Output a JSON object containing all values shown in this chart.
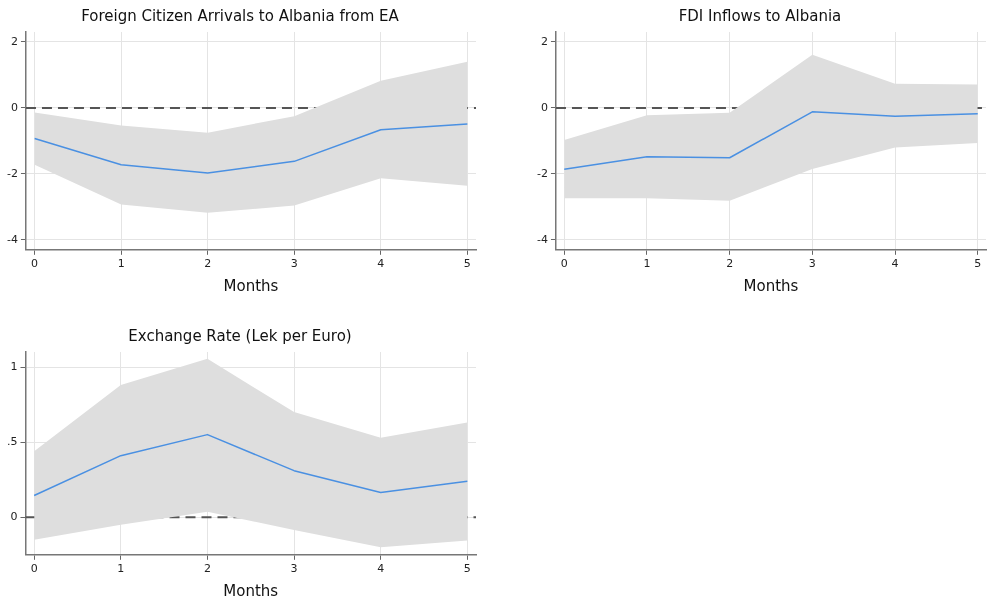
{
  "chart_data": [
    {
      "type": "line",
      "title": "Foreign Citizen Arrivals to Albania from EA",
      "xlabel": "Months",
      "x": [
        0,
        1,
        2,
        3,
        4,
        5
      ],
      "xlim": [
        -0.1,
        5.1
      ],
      "xticks": [
        0,
        1,
        2,
        3,
        4,
        5
      ],
      "ylim": [
        -4.3,
        2.3
      ],
      "yticks": [
        2,
        0,
        -2,
        -4
      ],
      "grid": true,
      "legend": false,
      "marker": "none",
      "line_style": "solid",
      "series": [
        {
          "color": "#4a90e2",
          "values": [
            -0.93,
            -1.72,
            -1.97,
            -1.62,
            -0.66,
            -0.49
          ],
          "lower": [
            -1.72,
            -2.93,
            -3.18,
            -2.96,
            -2.13,
            -2.36
          ],
          "upper": [
            -0.14,
            -0.53,
            -0.75,
            -0.25,
            0.82,
            1.4
          ]
        }
      ],
      "ref_lines": [
        {
          "axis": "y",
          "value": 0,
          "color": "#555555",
          "line_style": "dashed"
        }
      ]
    },
    {
      "type": "line",
      "title": "FDI Inflows to Albania",
      "xlabel": "Months",
      "x": [
        0,
        1,
        2,
        3,
        4,
        5
      ],
      "xlim": [
        -0.1,
        5.1
      ],
      "xticks": [
        0,
        1,
        2,
        3,
        4,
        5
      ],
      "ylim": [
        -4.3,
        2.3
      ],
      "yticks": [
        2,
        0,
        -2,
        -4
      ],
      "grid": true,
      "legend": false,
      "marker": "none",
      "line_style": "solid",
      "series": [
        {
          "color": "#4a90e2",
          "values": [
            -1.86,
            -1.48,
            -1.51,
            -0.12,
            -0.25,
            -0.18
          ],
          "lower": [
            -2.74,
            -2.74,
            -2.81,
            -1.85,
            -1.2,
            -1.06
          ],
          "upper": [
            -0.97,
            -0.22,
            -0.15,
            1.61,
            0.73,
            0.71
          ]
        }
      ],
      "ref_lines": [
        {
          "axis": "y",
          "value": 0,
          "color": "#555555",
          "line_style": "dashed"
        }
      ]
    },
    {
      "type": "line",
      "title": "Exchange Rate (Lek per Euro)",
      "xlabel": "Months",
      "x": [
        0,
        1,
        2,
        3,
        4,
        5
      ],
      "xlim": [
        -0.1,
        5.1
      ],
      "xticks": [
        0,
        1,
        2,
        3,
        4,
        5
      ],
      "ylim": [
        -0.25,
        1.1
      ],
      "yticks": [
        1,
        {
          "value": 0.5,
          "label": ".5"
        },
        0
      ],
      "grid": true,
      "legend": false,
      "marker": "none",
      "line_style": "solid",
      "series": [
        {
          "color": "#4a90e2",
          "values": [
            0.145,
            0.41,
            0.55,
            0.31,
            0.165,
            0.24
          ],
          "lower": [
            -0.15,
            -0.05,
            0.037,
            -0.085,
            -0.2,
            -0.155
          ],
          "upper": [
            0.44,
            0.88,
            1.055,
            0.7,
            0.53,
            0.63
          ]
        }
      ],
      "ref_lines": [
        {
          "axis": "y",
          "value": 0,
          "color": "#555555",
          "line_style": "dashed"
        }
      ]
    }
  ]
}
